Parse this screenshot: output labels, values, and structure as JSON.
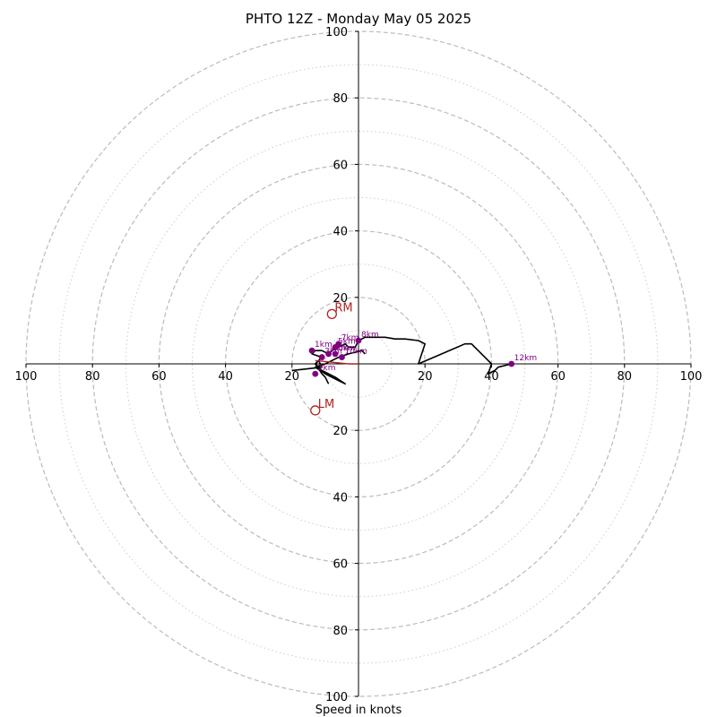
{
  "chart_data": {
    "type": "line",
    "title": "PHTO 12Z - Monday May 05 2025",
    "xlabel": "Speed in knots",
    "ylabel": "",
    "xlim": [
      -100,
      100
    ],
    "ylim": [
      -100,
      100
    ],
    "major_rings": [
      20,
      40,
      60,
      80,
      100
    ],
    "minor_rings": [
      10,
      30,
      50,
      70,
      90
    ],
    "tick_values": [
      20,
      40,
      60,
      80,
      100
    ],
    "grid": true,
    "colors": {
      "hodograph": "#000000",
      "km_markers": "#800080",
      "storm_motion": "#b22222",
      "ring_major": "#bbbbbb",
      "ring_minor": "#cccccc",
      "axes": "#000000"
    },
    "hodograph": {
      "u": [
        2,
        1,
        -3,
        -6,
        -8,
        -10,
        -13,
        -10,
        -6,
        -4,
        -7,
        -11,
        -13,
        -12,
        -11,
        -14,
        -13,
        -11,
        -9,
        -8,
        -6,
        -4,
        -3,
        -1,
        0,
        2,
        5,
        8,
        11,
        14,
        18,
        20,
        19,
        18,
        25,
        32,
        34,
        36,
        38,
        40,
        39,
        41,
        42,
        46
      ],
      "v": [
        3,
        4,
        3,
        2,
        1,
        0,
        -1,
        -3,
        -5,
        -6,
        -4,
        -2,
        0,
        1,
        2,
        3,
        4,
        4,
        3,
        4,
        5,
        6,
        5,
        5,
        7,
        8,
        8,
        8,
        7.5,
        7.5,
        7,
        6,
        3,
        0,
        3,
        6,
        6,
        4,
        2,
        0,
        -3,
        -2,
        -1,
        0
      ],
      "tail_u": [
        -20,
        -11,
        -12,
        -13,
        -11,
        -10,
        -9
      ],
      "tail_v": [
        -2,
        -1,
        1,
        0,
        -3,
        -4,
        -6
      ]
    },
    "km_markers": [
      {
        "label": "1km",
        "u": -14,
        "v": 4
      },
      {
        "label": "2km",
        "u": -13,
        "v": -3
      },
      {
        "label": "3km",
        "u": -11,
        "v": 2
      },
      {
        "label": "4km",
        "u": -9,
        "v": 3
      },
      {
        "label": "5km",
        "u": -7,
        "v": 5
      },
      {
        "label": "6km",
        "u": -7,
        "v": 3
      },
      {
        "label": "7km",
        "u": -6,
        "v": 6
      },
      {
        "label": "8km",
        "u": 0,
        "v": 7
      },
      {
        "label": "10km",
        "u": -5,
        "v": 2
      },
      {
        "label": "12km",
        "u": 46,
        "v": 0
      }
    ],
    "storm_motion": [
      {
        "label": "RM",
        "u": -8,
        "v": 15
      },
      {
        "label": "LM",
        "u": -13,
        "v": -14
      }
    ],
    "mean_wind_segment": {
      "u": [
        -13,
        -3,
        0
      ],
      "v": [
        1,
        0,
        0
      ]
    }
  }
}
